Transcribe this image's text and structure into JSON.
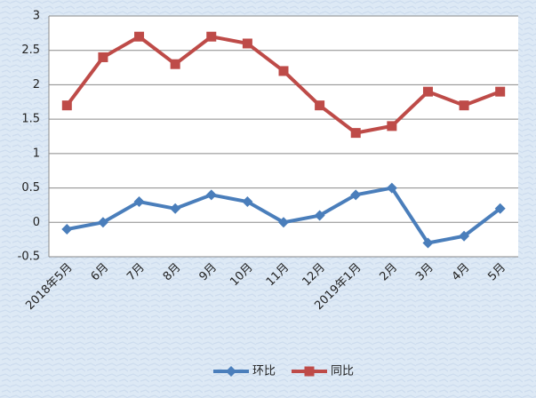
{
  "chart_data": {
    "type": "line",
    "categories": [
      "2018年5月",
      "6月",
      "7月",
      "8月",
      "9月",
      "10月",
      "11月",
      "12月",
      "2019年1月",
      "2月",
      "3月",
      "4月",
      "5月"
    ],
    "series": [
      {
        "name": "环比",
        "color": "#4a7ebb",
        "marker": "diamond",
        "values": [
          -0.1,
          0,
          0.3,
          0.2,
          0.4,
          0.3,
          0,
          0.1,
          0.4,
          0.5,
          -0.3,
          -0.2,
          0.2
        ]
      },
      {
        "name": "同比",
        "color": "#be4b48",
        "marker": "square",
        "values": [
          1.7,
          2.4,
          2.7,
          2.3,
          2.7,
          2.6,
          2.2,
          1.7,
          1.3,
          1.4,
          1.9,
          1.7,
          1.9
        ]
      }
    ],
    "ylim": [
      -0.5,
      3
    ],
    "yticks": [
      -0.5,
      0,
      0.5,
      1,
      1.5,
      2,
      2.5,
      3
    ],
    "grid": true,
    "legend": "bottom"
  }
}
